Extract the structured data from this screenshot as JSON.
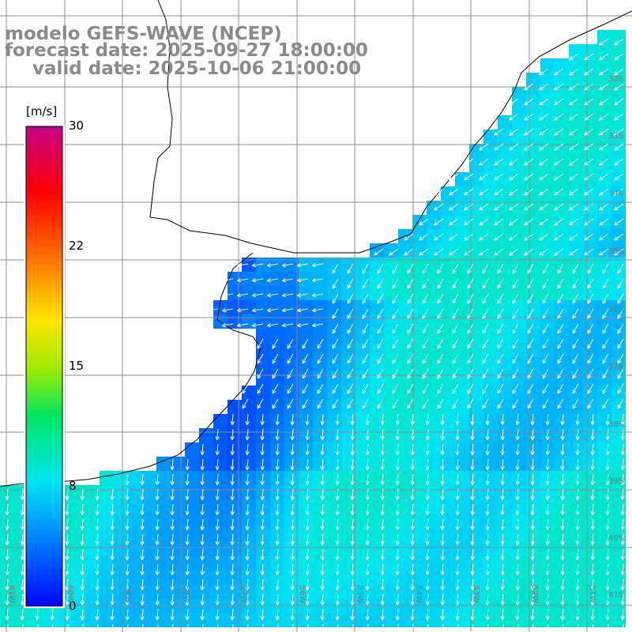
{
  "title_lines": [
    "modelo GEFS-WAVE (NCEP)",
    "forecast date: 2025-09-27 18:00:00",
    "valid date: 2025-10-06 21:00:00"
  ],
  "legend": {
    "unit": "[m/s]",
    "ticks": [
      "30",
      "22",
      "15",
      "8",
      "0"
    ],
    "tick_values": [
      30,
      22,
      15,
      8,
      0
    ]
  },
  "lat_labels": [
    "32S",
    "33S",
    "34S",
    "35S",
    "36S",
    "37S",
    "38S",
    "39S",
    "40S",
    "41S"
  ],
  "lon_labels": [
    "61W",
    "60W",
    "59W",
    "58W",
    "57W",
    "56W",
    "55W",
    "54W",
    "53W",
    "52W",
    "51W"
  ],
  "colors": {
    "land": "#ffffff",
    "grid": "#8c8c8c",
    "coast": "#000000",
    "arrow": "#ffffff",
    "title": "#8a8a8a"
  }
}
